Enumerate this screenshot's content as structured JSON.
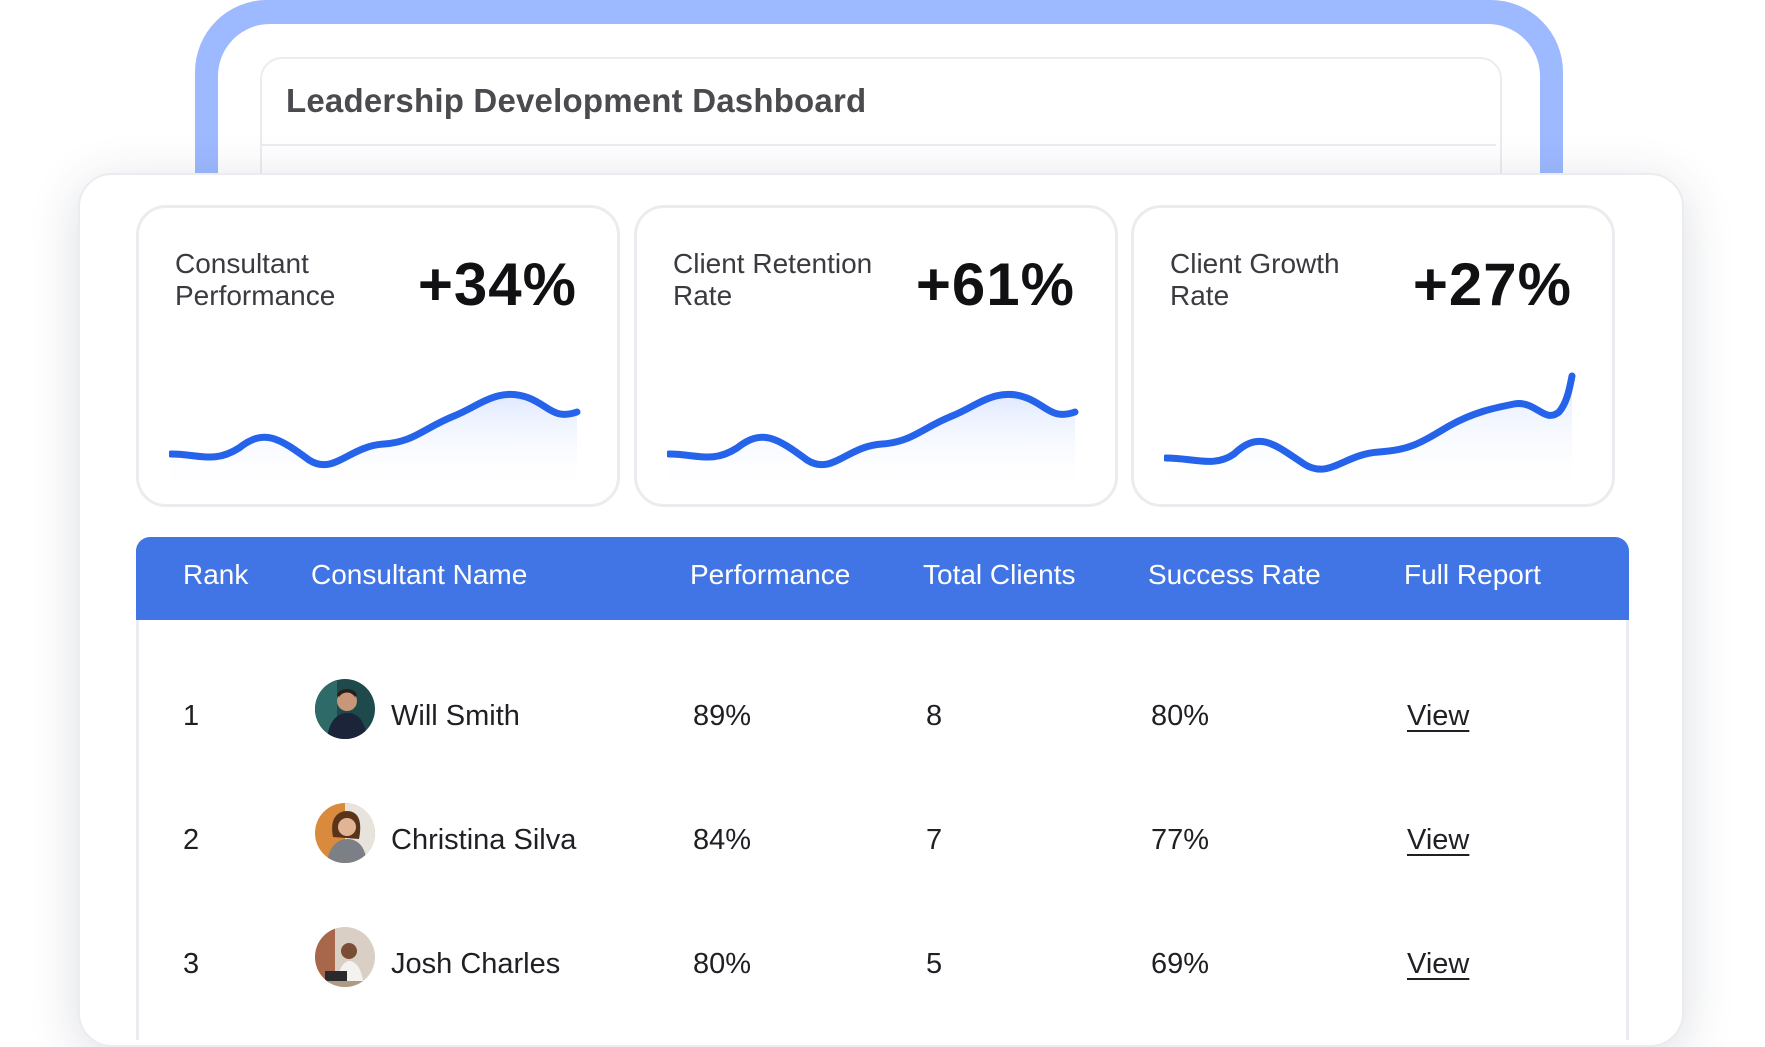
{
  "dashboard": {
    "title": "Leadership Development Dashboard"
  },
  "kpis": [
    {
      "label": "Consultant Performance",
      "value": "+34%"
    },
    {
      "label": "Client Retention Rate",
      "value": "+61%"
    },
    {
      "label": "Client Growth Rate",
      "value": "+27%"
    }
  ],
  "colors": {
    "accent": "#4175e6",
    "sparkline": "#2563eb",
    "frame": "#9db9ff"
  },
  "table": {
    "headers": [
      "Rank",
      "Consultant Name",
      "Performance",
      "Total Clients",
      "Success Rate",
      "Full Report"
    ],
    "rows": [
      {
        "rank": "1",
        "name": "Will Smith",
        "performance": "89%",
        "clients": "8",
        "success": "80%",
        "report": "View",
        "avatar_icon": "person-avatar-icon"
      },
      {
        "rank": "2",
        "name": "Christina Silva",
        "performance": "84%",
        "clients": "7",
        "success": "77%",
        "report": "View",
        "avatar_icon": "person-avatar-icon"
      },
      {
        "rank": "3",
        "name": "Josh Charles",
        "performance": "80%",
        "clients": "5",
        "success": "69%",
        "report": "View",
        "avatar_icon": "person-avatar-icon"
      }
    ]
  }
}
